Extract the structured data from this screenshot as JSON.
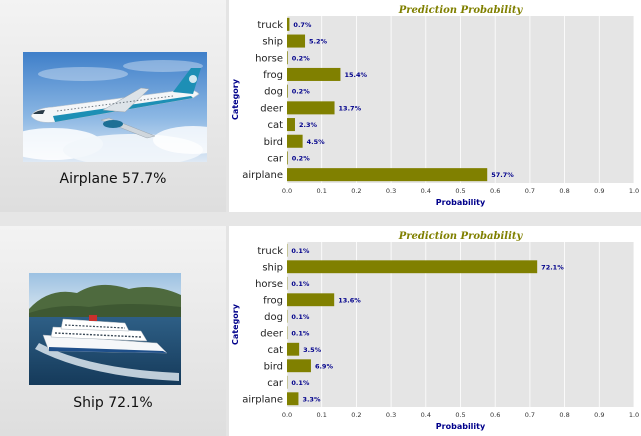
{
  "predictions": [
    {
      "caption": "Airplane 57.7%",
      "image_subject": "airplane"
    },
    {
      "caption": "Ship 72.1%",
      "image_subject": "ship"
    }
  ],
  "chart_data": [
    {
      "type": "bar",
      "orientation": "horizontal",
      "title": "Prediction Probability",
      "xlabel": "Probability",
      "ylabel": "Category",
      "xlim": [
        0,
        1
      ],
      "xticks": [
        "0.0",
        "0.1",
        "0.2",
        "0.3",
        "0.4",
        "0.5",
        "0.6",
        "0.7",
        "0.8",
        "0.9",
        "1.0"
      ],
      "categories": [
        "truck",
        "ship",
        "horse",
        "frog",
        "dog",
        "deer",
        "cat",
        "bird",
        "car",
        "airplane"
      ],
      "values": [
        0.007,
        0.052,
        0.002,
        0.154,
        0.002,
        0.137,
        0.023,
        0.045,
        0.002,
        0.577
      ],
      "labels": [
        "0.7%",
        "5.2%",
        "0.2%",
        "15.4%",
        "0.2%",
        "13.7%",
        "2.3%",
        "4.5%",
        "0.2%",
        "57.7%"
      ],
      "grid": true,
      "bar_color": "#808000",
      "title_color": "#808000",
      "label_color": "#00008b"
    },
    {
      "type": "bar",
      "orientation": "horizontal",
      "title": "Prediction Probability",
      "xlabel": "Probability",
      "ylabel": "Category",
      "xlim": [
        0,
        1
      ],
      "xticks": [
        "0.0",
        "0.1",
        "0.2",
        "0.3",
        "0.4",
        "0.5",
        "0.6",
        "0.7",
        "0.8",
        "0.9",
        "1.0"
      ],
      "categories": [
        "truck",
        "ship",
        "horse",
        "frog",
        "dog",
        "deer",
        "cat",
        "bird",
        "car",
        "airplane"
      ],
      "values": [
        0.001,
        0.721,
        0.001,
        0.136,
        0.001,
        0.001,
        0.035,
        0.069,
        0.001,
        0.033
      ],
      "labels": [
        "0.1%",
        "72.1%",
        "0.1%",
        "13.6%",
        "0.1%",
        "0.1%",
        "3.5%",
        "6.9%",
        "0.1%",
        "3.3%"
      ],
      "grid": true,
      "bar_color": "#808000",
      "title_color": "#808000",
      "label_color": "#00008b"
    }
  ]
}
